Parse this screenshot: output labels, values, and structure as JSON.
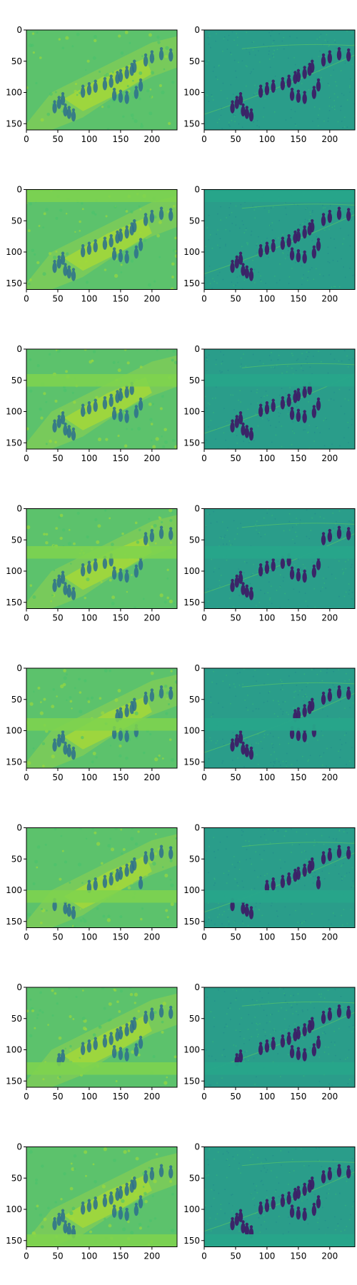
{
  "chart_data": {
    "type": "heatmap",
    "layout": "8 rows x 2 columns grid of image panels",
    "colormap": "viridis",
    "image_shape": [
      160,
      240
    ],
    "x_ticks": [
      0,
      50,
      100,
      150,
      200
    ],
    "y_ticks": [
      0,
      50,
      100,
      150
    ],
    "x_tick_labels": [
      "0",
      "50",
      "100",
      "150",
      "200"
    ],
    "y_tick_labels": [
      "0",
      "50",
      "100",
      "150"
    ],
    "xlim": [
      0,
      240
    ],
    "ylim": [
      160,
      0
    ],
    "title": "",
    "xlabel": "",
    "ylabel": "",
    "grid": false,
    "columns": [
      {
        "content": "smoothed reconstruction of crowd scene"
      },
      {
        "content": "edge-detail residual of crowd scene"
      }
    ],
    "rows": [
      {
        "index": 1,
        "flat_band_y_range": null
      },
      {
        "index": 2,
        "flat_band_y_range": [
          0,
          20
        ]
      },
      {
        "index": 3,
        "flat_band_y_range": [
          40,
          60
        ]
      },
      {
        "index": 4,
        "flat_band_y_range": [
          60,
          80
        ]
      },
      {
        "index": 5,
        "flat_band_y_range": [
          80,
          100
        ]
      },
      {
        "index": 6,
        "flat_band_y_range": [
          100,
          120
        ]
      },
      {
        "index": 7,
        "flat_band_y_range": [
          120,
          140
        ]
      },
      {
        "index": 8,
        "flat_band_y_range": [
          140,
          160
        ]
      }
    ],
    "people_positions": [
      [
        45,
        125
      ],
      [
        52,
        118
      ],
      [
        58,
        112
      ],
      [
        62,
        130
      ],
      [
        68,
        134
      ],
      [
        75,
        138
      ],
      [
        90,
        100
      ],
      [
        100,
        96
      ],
      [
        110,
        92
      ],
      [
        125,
        88
      ],
      [
        135,
        84
      ],
      [
        145,
        78
      ],
      [
        150,
        75
      ],
      [
        160,
        70
      ],
      [
        168,
        65
      ],
      [
        172,
        60
      ],
      [
        140,
        105
      ],
      [
        150,
        108
      ],
      [
        160,
        110
      ],
      [
        175,
        102
      ],
      [
        182,
        90
      ],
      [
        190,
        50
      ],
      [
        200,
        45
      ],
      [
        215,
        40
      ],
      [
        230,
        42
      ]
    ]
  }
}
